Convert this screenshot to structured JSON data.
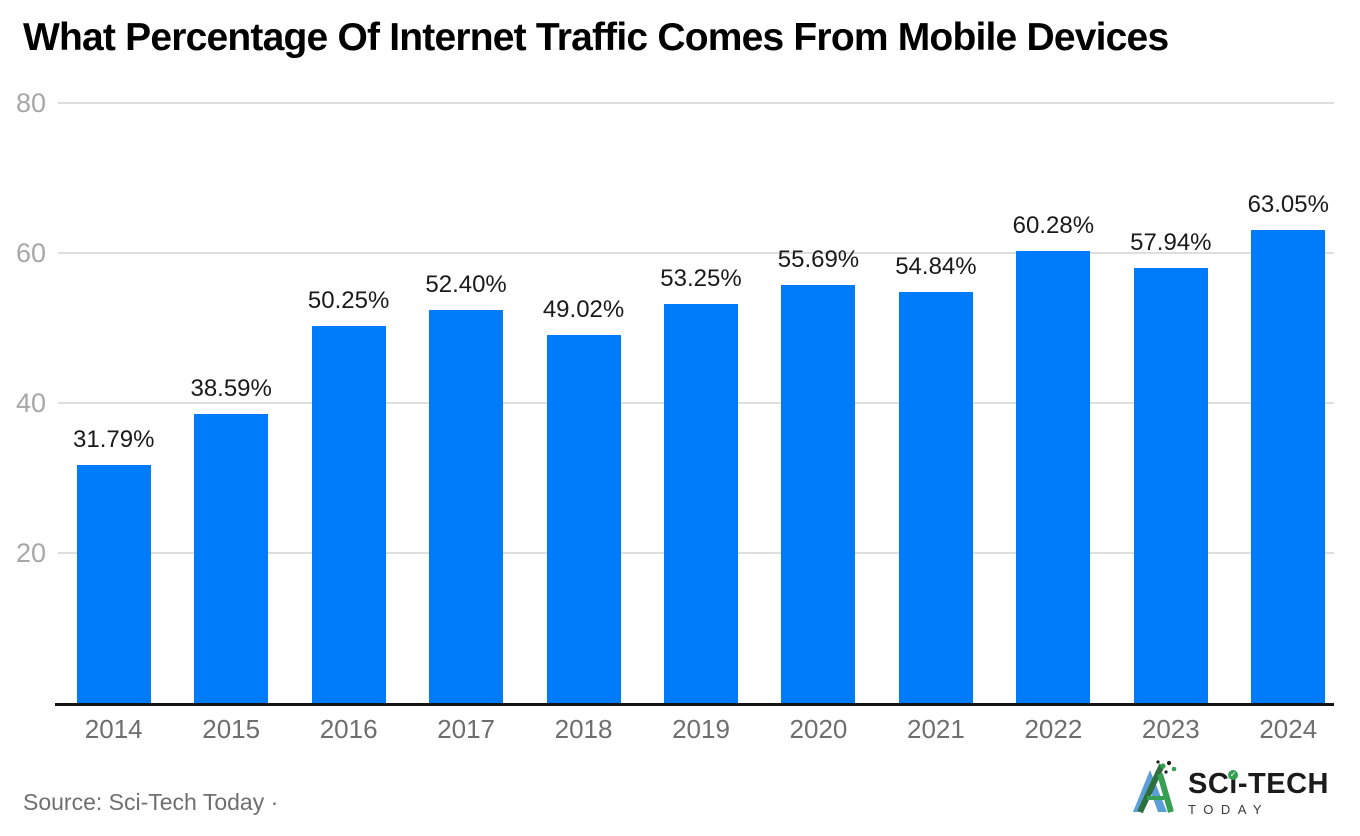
{
  "chart_data": {
    "type": "bar",
    "title": "What Percentage Of Internet Traffic Comes From Mobile Devices",
    "categories": [
      "2014",
      "2015",
      "2016",
      "2017",
      "2018",
      "2019",
      "2020",
      "2021",
      "2022",
      "2023",
      "2024"
    ],
    "values": [
      31.79,
      38.59,
      50.25,
      52.4,
      49.02,
      53.25,
      55.69,
      54.84,
      60.28,
      57.94,
      63.05
    ],
    "value_labels": [
      "31.79%",
      "38.59%",
      "50.25%",
      "52.40%",
      "49.02%",
      "53.25%",
      "55.69%",
      "54.84%",
      "60.28%",
      "57.94%",
      "63.05%"
    ],
    "xlabel": "",
    "ylabel": "",
    "ylim": [
      0,
      80
    ],
    "yticks": [
      20,
      40,
      60,
      80
    ],
    "grid": true,
    "legend": false,
    "bar_color": "#007bfa"
  },
  "footer": {
    "source": "Source: Sci-Tech Today ·",
    "logo": {
      "part1": "SC",
      "i_glyph": "ı",
      "part2": "-TECH",
      "check": "✓",
      "tagline": "TODAY"
    }
  },
  "colors": {
    "bar": "#007bfa",
    "gridline": "#dedede",
    "axis_line": "#131313",
    "y_tick_text": "#a7a7a7",
    "x_tick_text": "#6e6e6e",
    "value_label_text": "#1a1a1a",
    "title_text": "#000000",
    "source_text": "#6f6f6f",
    "logo_green": "#35a053",
    "logo_dark_green": "#2e6f3e",
    "logo_blue": "#5c9fd6"
  }
}
